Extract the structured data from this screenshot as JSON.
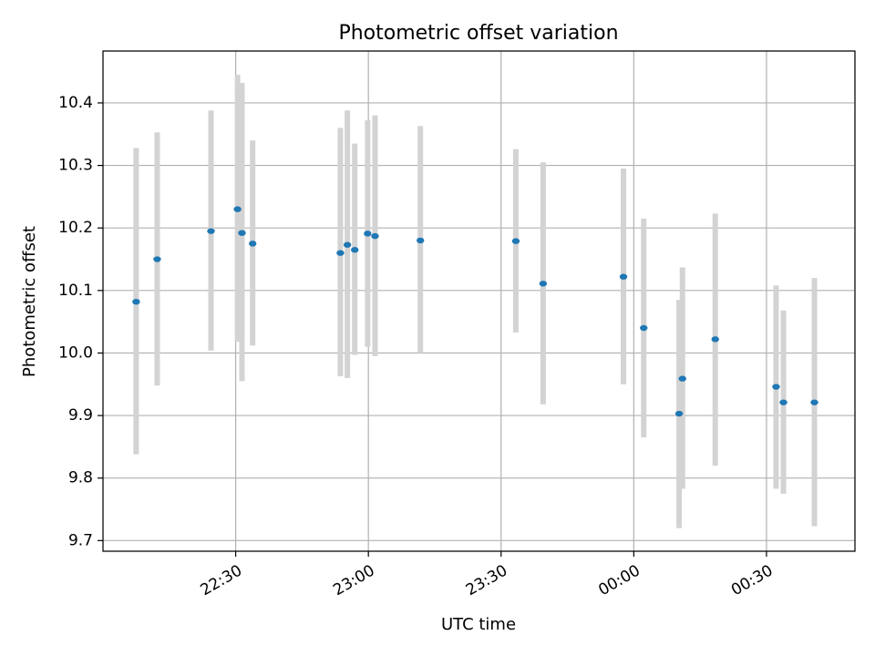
{
  "chart_data": {
    "type": "scatter",
    "title": "Photometric offset variation",
    "xlabel": "UTC time",
    "ylabel": "Photometric offset",
    "x_time_range": [
      "22:00",
      "00:50"
    ],
    "ylim": [
      9.683,
      10.483
    ],
    "x_ticks": [
      "22:30",
      "23:00",
      "23:30",
      "00:00",
      "00:30"
    ],
    "y_ticks": [
      "9.7",
      "9.8",
      "9.9",
      "10.0",
      "10.1",
      "10.2",
      "10.3",
      "10.4"
    ],
    "grid": true,
    "series": [
      {
        "marker_color": "#1f77b4",
        "errorbar_color": "#d3d3d3",
        "points": [
          {
            "t": "22:07:30",
            "y": 10.082,
            "lo": 9.838,
            "hi": 10.328
          },
          {
            "t": "22:12:15",
            "y": 10.15,
            "lo": 9.948,
            "hi": 10.353
          },
          {
            "t": "22:24:25",
            "y": 10.195,
            "lo": 10.004,
            "hi": 10.388
          },
          {
            "t": "22:30:25",
            "y": 10.23,
            "lo": 10.018,
            "hi": 10.445
          },
          {
            "t": "22:31:25",
            "y": 10.192,
            "lo": 9.955,
            "hi": 10.432
          },
          {
            "t": "22:33:50",
            "y": 10.175,
            "lo": 10.012,
            "hi": 10.34
          },
          {
            "t": "22:53:40",
            "y": 10.16,
            "lo": 9.963,
            "hi": 10.36
          },
          {
            "t": "22:55:15",
            "y": 10.173,
            "lo": 9.96,
            "hi": 10.388
          },
          {
            "t": "22:56:55",
            "y": 10.165,
            "lo": 9.997,
            "hi": 10.335
          },
          {
            "t": "22:59:50",
            "y": 10.191,
            "lo": 10.01,
            "hi": 10.372
          },
          {
            "t": "23:01:30",
            "y": 10.187,
            "lo": 9.995,
            "hi": 10.38
          },
          {
            "t": "23:11:45",
            "y": 10.18,
            "lo": 10.0,
            "hi": 10.363
          },
          {
            "t": "23:33:20",
            "y": 10.179,
            "lo": 10.033,
            "hi": 10.326
          },
          {
            "t": "23:39:30",
            "y": 10.111,
            "lo": 9.918,
            "hi": 10.305
          },
          {
            "t": "23:57:40",
            "y": 10.122,
            "lo": 9.95,
            "hi": 10.295
          },
          {
            "t": "00:02:15",
            "y": 10.04,
            "lo": 9.865,
            "hi": 10.215
          },
          {
            "t": "00:10:15",
            "y": 9.903,
            "lo": 9.72,
            "hi": 10.085
          },
          {
            "t": "00:11:00",
            "y": 9.959,
            "lo": 9.783,
            "hi": 10.137
          },
          {
            "t": "00:18:25",
            "y": 10.022,
            "lo": 9.82,
            "hi": 10.223
          },
          {
            "t": "00:32:10",
            "y": 9.946,
            "lo": 9.783,
            "hi": 10.108
          },
          {
            "t": "00:33:50",
            "y": 9.921,
            "lo": 9.775,
            "hi": 10.068
          },
          {
            "t": "00:40:50",
            "y": 9.921,
            "lo": 9.723,
            "hi": 10.12
          }
        ]
      }
    ]
  }
}
